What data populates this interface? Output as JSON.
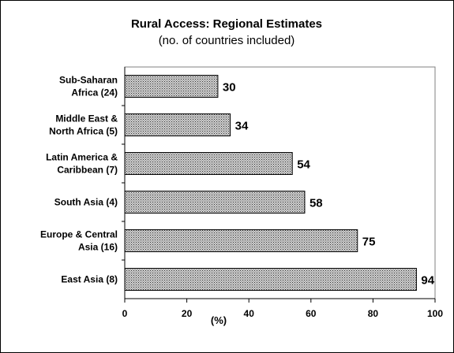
{
  "chart_data": {
    "type": "bar",
    "orientation": "horizontal",
    "title": "Rural Access: Regional Estimates",
    "subtitle": "(no. of countries included)",
    "xlabel": "(%)",
    "xlim": [
      0,
      100
    ],
    "xticks": [
      "0",
      "20",
      "40",
      "60",
      "80",
      "100"
    ],
    "categories": [
      [
        "Sub-Saharan",
        "Africa (24)"
      ],
      [
        "Middle East &",
        "North Africa (5)"
      ],
      [
        "Latin America &",
        "Caribbean (7)"
      ],
      [
        "South Asia (4)"
      ],
      [
        "Europe & Central",
        "Asia (16)"
      ],
      [
        "East Asia (8)"
      ]
    ],
    "values": [
      30,
      34,
      54,
      58,
      75,
      94
    ],
    "grid": false,
    "bar_fill": "dotted gray pattern"
  }
}
